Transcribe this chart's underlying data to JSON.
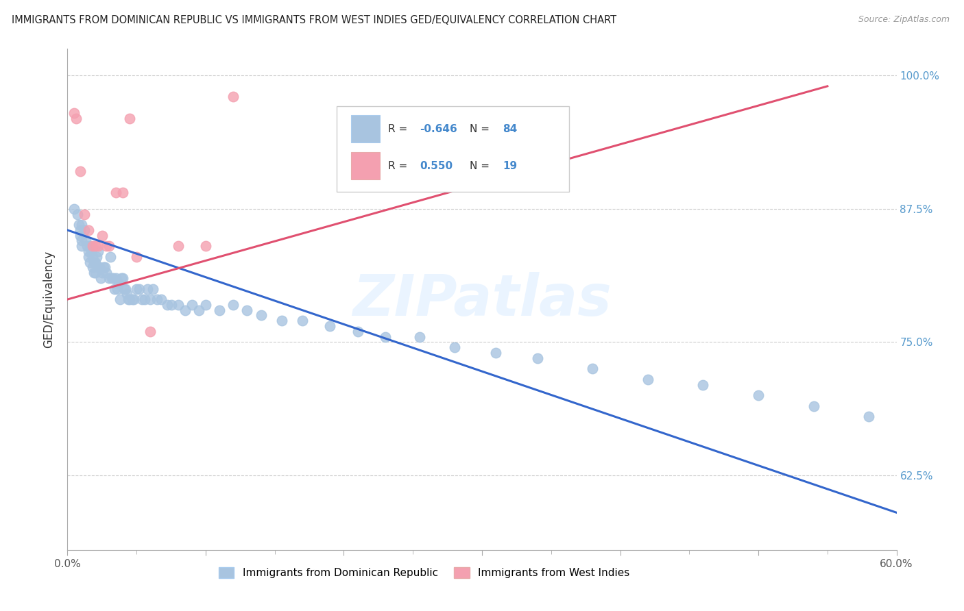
{
  "title": "IMMIGRANTS FROM DOMINICAN REPUBLIC VS IMMIGRANTS FROM WEST INDIES GED/EQUIVALENCY CORRELATION CHART",
  "source": "Source: ZipAtlas.com",
  "ylabel": "GED/Equivalency",
  "ytick_labels": [
    "100.0%",
    "87.5%",
    "75.0%",
    "62.5%"
  ],
  "ytick_values": [
    1.0,
    0.875,
    0.75,
    0.625
  ],
  "xmin": 0.0,
  "xmax": 0.6,
  "ymin": 0.555,
  "ymax": 1.025,
  "blue_color": "#a8c4e0",
  "pink_color": "#f4a0b0",
  "blue_line_color": "#3366cc",
  "pink_line_color": "#e05070",
  "watermark": "ZIPatlas",
  "legend_label1": "Immigrants from Dominican Republic",
  "legend_label2": "Immigrants from West Indies",
  "blue_scatter_x": [
    0.005,
    0.007,
    0.008,
    0.009,
    0.009,
    0.01,
    0.01,
    0.01,
    0.012,
    0.013,
    0.014,
    0.015,
    0.015,
    0.016,
    0.016,
    0.017,
    0.018,
    0.018,
    0.019,
    0.019,
    0.02,
    0.02,
    0.021,
    0.022,
    0.022,
    0.023,
    0.024,
    0.025,
    0.026,
    0.027,
    0.028,
    0.03,
    0.031,
    0.032,
    0.033,
    0.034,
    0.035,
    0.036,
    0.037,
    0.038,
    0.039,
    0.04,
    0.041,
    0.042,
    0.043,
    0.044,
    0.045,
    0.047,
    0.048,
    0.05,
    0.052,
    0.054,
    0.056,
    0.058,
    0.06,
    0.062,
    0.065,
    0.068,
    0.072,
    0.075,
    0.08,
    0.085,
    0.09,
    0.095,
    0.1,
    0.11,
    0.12,
    0.13,
    0.14,
    0.155,
    0.17,
    0.19,
    0.21,
    0.23,
    0.255,
    0.28,
    0.31,
    0.34,
    0.38,
    0.42,
    0.46,
    0.5,
    0.54,
    0.58
  ],
  "blue_scatter_y": [
    0.875,
    0.87,
    0.86,
    0.855,
    0.85,
    0.86,
    0.845,
    0.84,
    0.855,
    0.845,
    0.84,
    0.835,
    0.83,
    0.84,
    0.825,
    0.835,
    0.83,
    0.82,
    0.825,
    0.815,
    0.825,
    0.815,
    0.83,
    0.835,
    0.82,
    0.82,
    0.81,
    0.815,
    0.82,
    0.82,
    0.815,
    0.81,
    0.83,
    0.81,
    0.81,
    0.8,
    0.81,
    0.8,
    0.805,
    0.79,
    0.81,
    0.81,
    0.8,
    0.8,
    0.795,
    0.79,
    0.79,
    0.79,
    0.79,
    0.8,
    0.8,
    0.79,
    0.79,
    0.8,
    0.79,
    0.8,
    0.79,
    0.79,
    0.785,
    0.785,
    0.785,
    0.78,
    0.785,
    0.78,
    0.785,
    0.78,
    0.785,
    0.78,
    0.775,
    0.77,
    0.77,
    0.765,
    0.76,
    0.755,
    0.755,
    0.745,
    0.74,
    0.735,
    0.725,
    0.715,
    0.71,
    0.7,
    0.69,
    0.68
  ],
  "pink_scatter_x": [
    0.005,
    0.006,
    0.009,
    0.012,
    0.015,
    0.018,
    0.02,
    0.022,
    0.025,
    0.028,
    0.03,
    0.035,
    0.04,
    0.045,
    0.05,
    0.06,
    0.08,
    0.1,
    0.12
  ],
  "pink_scatter_y": [
    0.965,
    0.96,
    0.91,
    0.87,
    0.855,
    0.84,
    0.84,
    0.84,
    0.85,
    0.84,
    0.84,
    0.89,
    0.89,
    0.96,
    0.83,
    0.76,
    0.84,
    0.84,
    0.98
  ],
  "blue_line_x": [
    0.0,
    0.6
  ],
  "blue_line_y": [
    0.855,
    0.59
  ],
  "pink_line_x": [
    0.0,
    0.55
  ],
  "pink_line_y": [
    0.79,
    0.99
  ]
}
